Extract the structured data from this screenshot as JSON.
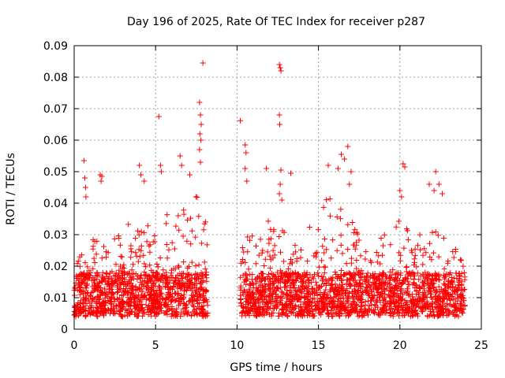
{
  "chart_data": {
    "type": "scatter",
    "title": "Day 196 of 2025, Rate Of TEC Index for receiver p287",
    "xlabel": "GPS time / hours",
    "ylabel": "ROTI / TECUs",
    "xlim": [
      0,
      25
    ],
    "ylim": [
      0,
      0.09
    ],
    "xticks": [
      "0",
      "5",
      "10",
      "15",
      "20",
      "25"
    ],
    "yticks": [
      "0",
      "0.01",
      "0.02",
      "0.03",
      "0.04",
      "0.05",
      "0.06",
      "0.07",
      "0.08",
      "0.09"
    ],
    "grid": true,
    "marker": "+",
    "marker_color": "#ff0000",
    "gap_hours": [
      8.2,
      10.2
    ],
    "envelope": [
      [
        0.0,
        0.022
      ],
      [
        0.5,
        0.025
      ],
      [
        1.0,
        0.028
      ],
      [
        1.5,
        0.03
      ],
      [
        2.0,
        0.027
      ],
      [
        2.5,
        0.03
      ],
      [
        3.0,
        0.033
      ],
      [
        3.5,
        0.035
      ],
      [
        4.0,
        0.04
      ],
      [
        4.5,
        0.038
      ],
      [
        5.0,
        0.03
      ],
      [
        5.5,
        0.036
      ],
      [
        6.0,
        0.038
      ],
      [
        6.5,
        0.042
      ],
      [
        7.0,
        0.04
      ],
      [
        7.5,
        0.045
      ],
      [
        8.0,
        0.035
      ],
      [
        10.3,
        0.028
      ],
      [
        10.8,
        0.03
      ],
      [
        11.5,
        0.032
      ],
      [
        12.0,
        0.035
      ],
      [
        12.5,
        0.04
      ],
      [
        13.0,
        0.033
      ],
      [
        13.5,
        0.028
      ],
      [
        14.0,
        0.03
      ],
      [
        14.5,
        0.033
      ],
      [
        15.0,
        0.036
      ],
      [
        15.5,
        0.042
      ],
      [
        16.0,
        0.045
      ],
      [
        16.5,
        0.04
      ],
      [
        17.0,
        0.035
      ],
      [
        17.5,
        0.03
      ],
      [
        18.0,
        0.03
      ],
      [
        18.5,
        0.032
      ],
      [
        19.0,
        0.03
      ],
      [
        19.5,
        0.033
      ],
      [
        20.0,
        0.035
      ],
      [
        20.5,
        0.032
      ],
      [
        21.0,
        0.03
      ],
      [
        21.5,
        0.032
      ],
      [
        22.0,
        0.035
      ],
      [
        22.5,
        0.03
      ],
      [
        23.0,
        0.028
      ],
      [
        23.5,
        0.025
      ],
      [
        24.0,
        0.02
      ]
    ],
    "outliers": [
      [
        0.6,
        0.0535
      ],
      [
        0.65,
        0.048
      ],
      [
        0.7,
        0.045
      ],
      [
        0.72,
        0.042
      ],
      [
        1.6,
        0.049
      ],
      [
        1.7,
        0.0485
      ],
      [
        1.65,
        0.047
      ],
      [
        4.0,
        0.052
      ],
      [
        4.1,
        0.049
      ],
      [
        4.3,
        0.047
      ],
      [
        5.2,
        0.0675
      ],
      [
        5.3,
        0.052
      ],
      [
        5.35,
        0.05
      ],
      [
        6.5,
        0.055
      ],
      [
        6.6,
        0.052
      ],
      [
        7.1,
        0.049
      ],
      [
        7.7,
        0.072
      ],
      [
        7.75,
        0.068
      ],
      [
        7.8,
        0.065
      ],
      [
        7.72,
        0.062
      ],
      [
        7.78,
        0.06
      ],
      [
        7.7,
        0.057
      ],
      [
        7.75,
        0.053
      ],
      [
        7.9,
        0.0845
      ],
      [
        10.2,
        0.0662
      ],
      [
        10.5,
        0.0585
      ],
      [
        10.55,
        0.056
      ],
      [
        10.5,
        0.051
      ],
      [
        10.6,
        0.047
      ],
      [
        11.8,
        0.051
      ],
      [
        12.6,
        0.084
      ],
      [
        12.65,
        0.083
      ],
      [
        12.7,
        0.082
      ],
      [
        12.6,
        0.068
      ],
      [
        12.62,
        0.065
      ],
      [
        12.7,
        0.0505
      ],
      [
        12.65,
        0.046
      ],
      [
        12.6,
        0.043
      ],
      [
        12.75,
        0.041
      ],
      [
        13.3,
        0.0495
      ],
      [
        15.6,
        0.052
      ],
      [
        16.2,
        0.051
      ],
      [
        16.4,
        0.0555
      ],
      [
        16.8,
        0.058
      ],
      [
        16.6,
        0.054
      ],
      [
        17.0,
        0.05
      ],
      [
        16.9,
        0.046
      ],
      [
        20.2,
        0.0525
      ],
      [
        20.3,
        0.0515
      ],
      [
        20.0,
        0.044
      ],
      [
        20.1,
        0.042
      ],
      [
        22.2,
        0.05
      ],
      [
        22.4,
        0.046
      ],
      [
        21.8,
        0.046
      ],
      [
        22.1,
        0.044
      ],
      [
        22.6,
        0.043
      ]
    ]
  }
}
